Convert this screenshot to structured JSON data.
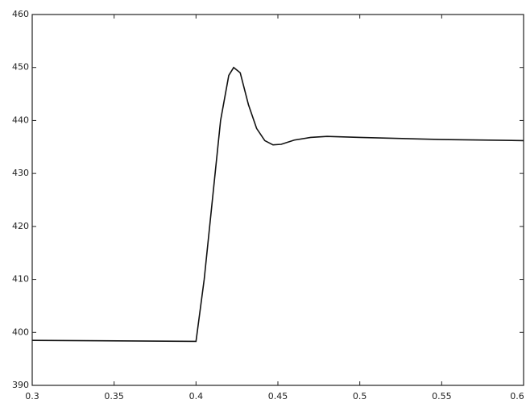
{
  "chart_data": {
    "type": "line",
    "x": [
      0.3,
      0.4,
      0.405,
      0.41,
      0.415,
      0.42,
      0.423,
      0.427,
      0.432,
      0.437,
      0.442,
      0.447,
      0.452,
      0.46,
      0.47,
      0.48,
      0.5,
      0.55,
      0.6
    ],
    "series": [
      {
        "color": "#111111",
        "values": [
          398.5,
          398.3,
          410,
          425,
          440,
          448.5,
          450,
          449,
          443,
          438.5,
          436.2,
          435.4,
          435.5,
          436.3,
          436.8,
          437,
          436.8,
          436.4,
          436.2
        ]
      }
    ],
    "xlim": [
      0.3,
      0.6
    ],
    "xticks": [
      0.3,
      0.35,
      0.4,
      0.45,
      0.5,
      0.55,
      0.6
    ],
    "ylim": [
      390,
      460
    ],
    "yticks": [
      390,
      400,
      410,
      420,
      430,
      440,
      450,
      460
    ],
    "grid": false
  }
}
